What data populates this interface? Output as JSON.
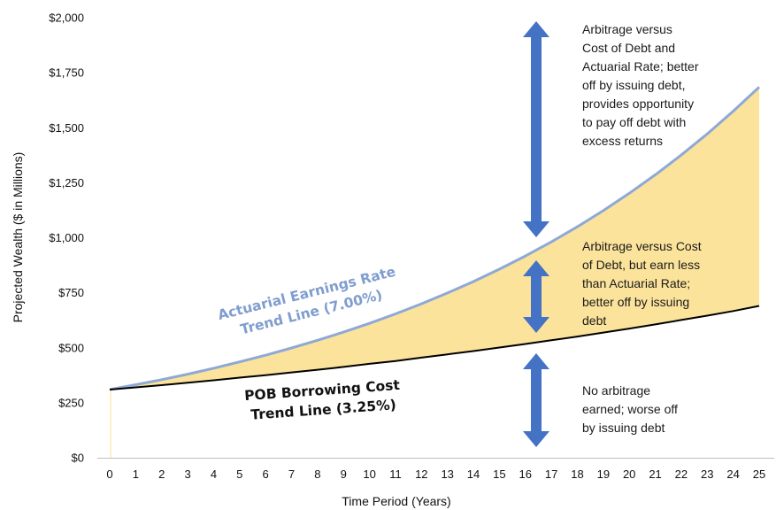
{
  "chart_data": {
    "type": "area",
    "xlabel": "Time Period (Years)",
    "ylabel": "Projected Wealth ($ in Millions)",
    "x": [
      0,
      1,
      2,
      3,
      4,
      5,
      6,
      7,
      8,
      9,
      10,
      11,
      12,
      13,
      14,
      15,
      16,
      17,
      18,
      19,
      20,
      21,
      22,
      23,
      24,
      25
    ],
    "xlim": [
      0,
      25
    ],
    "ylim": [
      0,
      2000
    ],
    "yticks": [
      0,
      250,
      500,
      750,
      1000,
      1250,
      1500,
      1750,
      2000
    ],
    "ytick_labels": [
      "$0",
      "$250",
      "$500",
      "$750",
      "$1,000",
      "$1,250",
      "$1,500",
      "$1,750",
      "$2,000"
    ],
    "grid": false,
    "series": [
      {
        "name": "Actuarial Earnings Rate Trend Line (7.00%)",
        "color": "#8ea9d6",
        "values": [
          310,
          332,
          355,
          380,
          407,
          436,
          466,
          499,
          534,
          571,
          611,
          654,
          700,
          749,
          801,
          857,
          917,
          981,
          1050,
          1123,
          1202,
          1286,
          1376,
          1472,
          1575,
          1685
        ]
      },
      {
        "name": "POB Borrowing Cost Trend Line (3.25%)",
        "color": "#000000",
        "values": [
          310,
          320,
          330,
          341,
          352,
          364,
          375,
          388,
          400,
          413,
          427,
          440,
          455,
          470,
          485,
          501,
          517,
          534,
          551,
          569,
          587,
          606,
          626,
          646,
          667,
          690
        ]
      }
    ],
    "fill_color": "#fbe39b",
    "annotations": {
      "actuarial_label": [
        "Actuarial Earnings Rate",
        "Trend Line (7.00%)"
      ],
      "pob_label": [
        "POB Borrowing Cost",
        "Trend Line (3.25%)"
      ],
      "top_note": [
        "Arbitrage versus",
        "Cost of Debt and",
        "Actuarial Rate; better",
        "off by issuing debt,",
        "provides opportunity",
        "to pay off debt with",
        "excess returns"
      ],
      "middle_note": [
        "Arbitrage versus Cost",
        "of Debt, but earn less",
        "than Actuarial Rate;",
        "better off by issuing",
        "debt"
      ],
      "bottom_note": [
        "No arbitrage",
        "earned; worse off",
        "by issuing debt"
      ],
      "arrow_color": "#4472c4"
    }
  }
}
